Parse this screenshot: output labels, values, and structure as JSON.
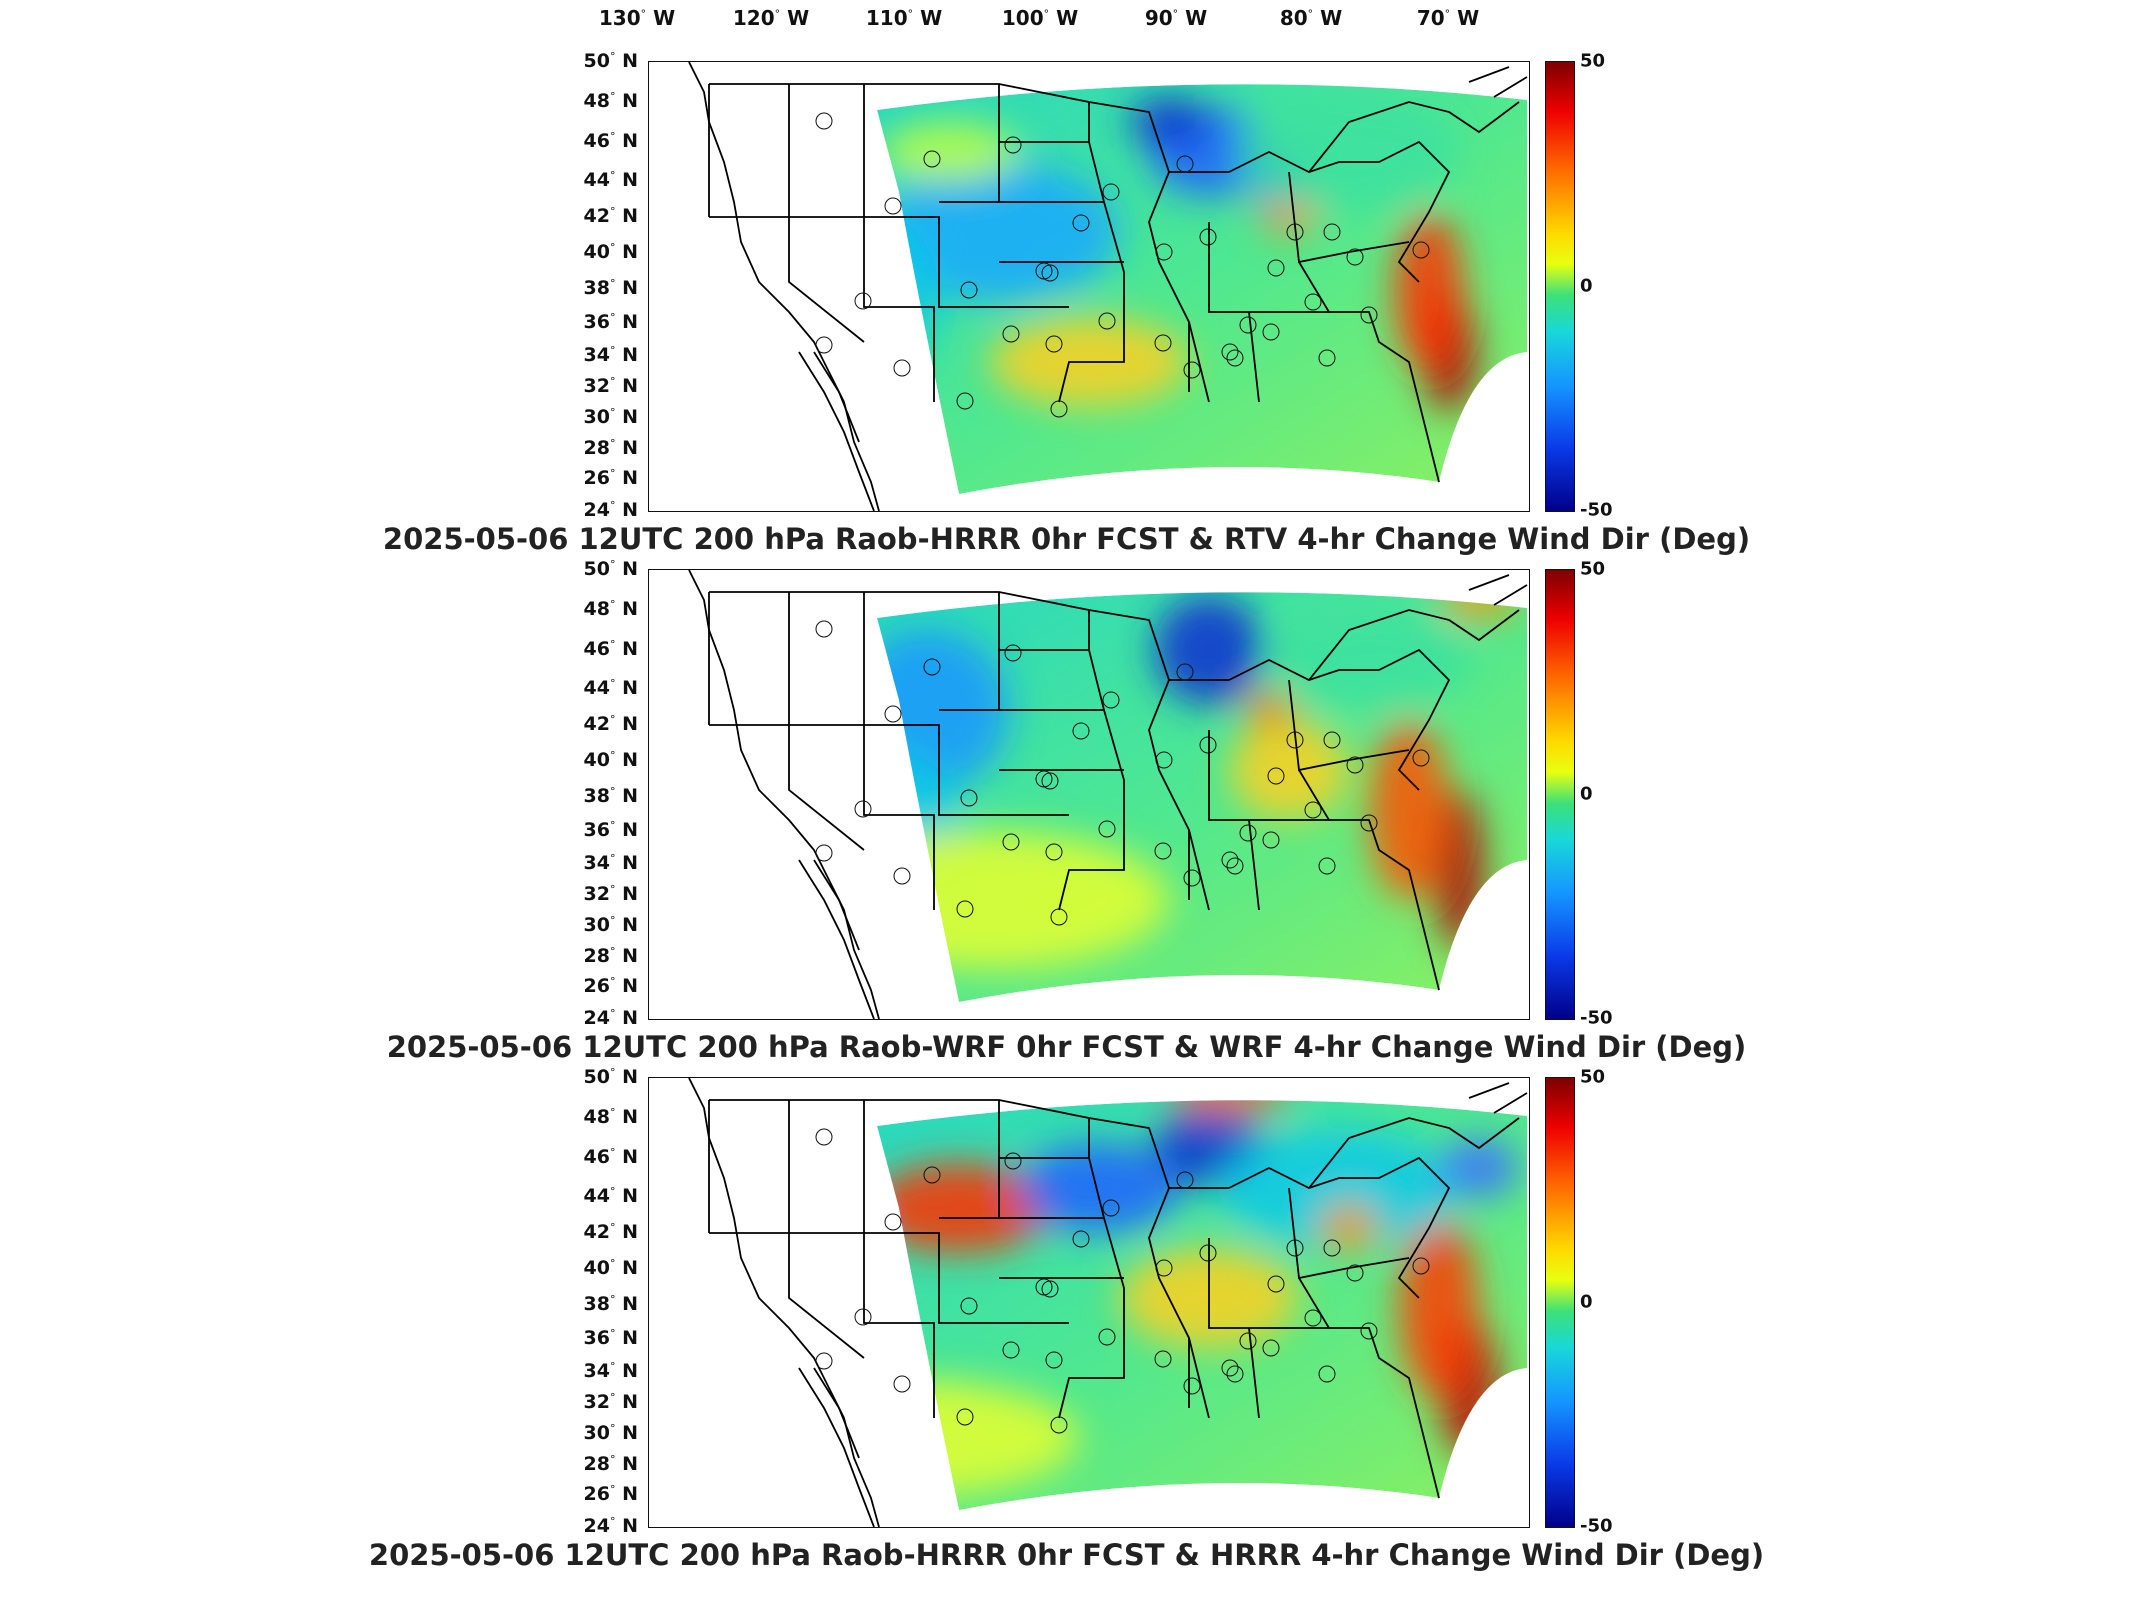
{
  "longitude_labels": [
    "130",
    "120",
    "110",
    "100",
    "90",
    "80",
    "70"
  ],
  "longitude_suffix": "W",
  "latitude_labels": [
    "50",
    "48",
    "46",
    "44",
    "42",
    "40",
    "38",
    "36",
    "34",
    "32",
    "30",
    "28",
    "26",
    "24"
  ],
  "latitude_suffix": "N",
  "colorbar": {
    "max_label": "50",
    "mid_label": "0",
    "min_label": "-50"
  },
  "colors": {
    "positive_max": "#7f0000",
    "zero": "#3ce07a",
    "negative_min": "#00008a",
    "coast_line": "#000000"
  },
  "panels": [
    {
      "title": "2025-05-06 12UTC 200 hPa Raob-HRRR 0hr FCST & RTV 4-hr Change Wind Dir (Deg)"
    },
    {
      "title": "2025-05-06 12UTC 200 hPa Raob-WRF 0hr FCST & WRF 4-hr Change Wind Dir (Deg)"
    },
    {
      "title": "2025-05-06 12UTC 200 hPa Raob-HRRR 0hr FCST & HRRR 4-hr Change Wind Dir (Deg)"
    }
  ]
}
